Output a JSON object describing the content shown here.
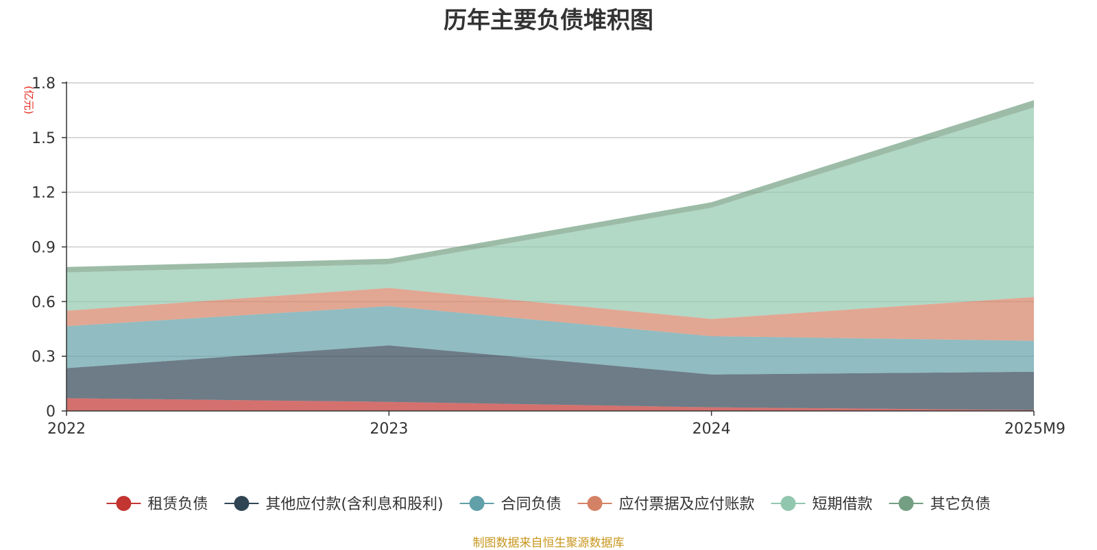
{
  "chart_data": {
    "type": "area",
    "title": "历年主要负债堆积图",
    "unit_label": "(亿元)",
    "x": [
      "2022",
      "2023",
      "2024",
      "2025M9"
    ],
    "ylim": [
      0,
      1.8
    ],
    "yticks": [
      0,
      0.3,
      0.6,
      0.9,
      1.2,
      1.5,
      1.8
    ],
    "ytick_labels": [
      "0",
      "0.3",
      "0.6",
      "0.9",
      "1.2",
      "1.5",
      "1.8"
    ],
    "grid": true,
    "stacked": true,
    "legend_position": "bottom",
    "series": [
      {
        "name": "租赁负债",
        "color": "#c23531",
        "values": [
          0.07,
          0.05,
          0.02,
          0.005
        ]
      },
      {
        "name": "其他应付款(含利息和股利)",
        "color": "#2f4554",
        "values": [
          0.165,
          0.31,
          0.18,
          0.21
        ]
      },
      {
        "name": "合同负债",
        "color": "#61a0a8",
        "values": [
          0.23,
          0.215,
          0.21,
          0.17
        ]
      },
      {
        "name": "应付票据及应付账款",
        "color": "#d48265",
        "values": [
          0.085,
          0.1,
          0.095,
          0.24
        ]
      },
      {
        "name": "短期借款",
        "color": "#91c7ae",
        "values": [
          0.21,
          0.13,
          0.61,
          1.04
        ]
      },
      {
        "name": "其它负债",
        "color": "#749f83",
        "values": [
          0.03,
          0.03,
          0.03,
          0.04
        ]
      }
    ]
  },
  "footer": {
    "source": "制图数据来自恒生聚源数据库"
  }
}
